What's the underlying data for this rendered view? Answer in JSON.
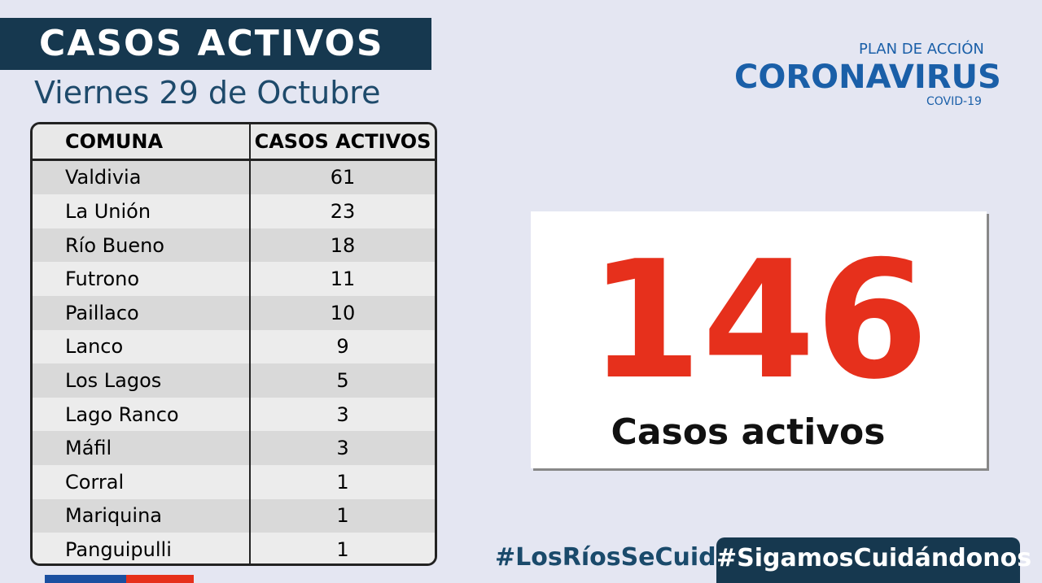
{
  "header": {
    "title": "CASOS ACTIVOS",
    "date": "Viernes 29 de Octubre"
  },
  "logo": {
    "line1": "PLAN DE ACCIÓN",
    "line2": "CORONAVIRUS",
    "line3": "COVID-19"
  },
  "table": {
    "headers": [
      "COMUNA",
      "CASOS ACTIVOS"
    ],
    "rows": [
      [
        "Valdivia",
        "61"
      ],
      [
        "La Unión",
        "23"
      ],
      [
        "Río Bueno",
        "18"
      ],
      [
        "Futrono",
        "11"
      ],
      [
        "Paillaco",
        "10"
      ],
      [
        "Lanco",
        "9"
      ],
      [
        "Los Lagos",
        "5"
      ],
      [
        "Lago Ranco",
        "3"
      ],
      [
        "Máfil",
        "3"
      ],
      [
        "Corral",
        "1"
      ],
      [
        "Mariquina",
        "1"
      ],
      [
        "Panguipulli",
        "1"
      ]
    ]
  },
  "total": {
    "value": "146",
    "label": "Casos activos"
  },
  "footer": {
    "tag1": "#LosRíosSeCuida",
    "tag2": "#SigamosCuidándonos"
  }
}
